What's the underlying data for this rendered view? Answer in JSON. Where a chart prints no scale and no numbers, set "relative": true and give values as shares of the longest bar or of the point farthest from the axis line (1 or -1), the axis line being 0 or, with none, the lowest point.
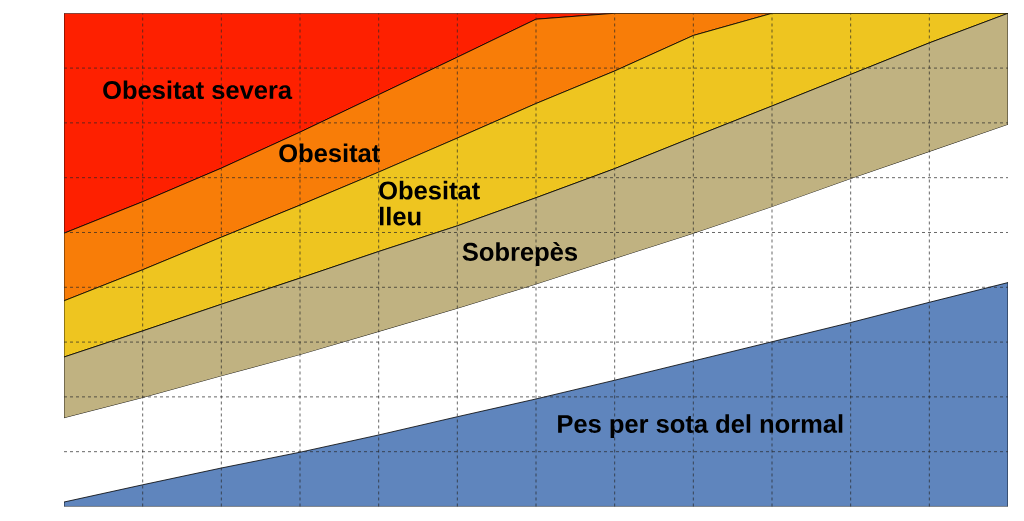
{
  "chart_data": {
    "type": "area",
    "stacked": true,
    "relative": true,
    "grid": true,
    "categories": [
      null,
      null,
      null,
      null,
      null,
      null,
      null,
      null,
      null,
      null,
      null,
      null,
      null
    ],
    "series": [
      {
        "name": "Pes per sota del normal",
        "color": "#5f85bd",
        "values": [
          0.009,
          0.044,
          0.078,
          0.11,
          0.145,
          0.182,
          0.218,
          0.256,
          0.295,
          0.334,
          0.373,
          0.414,
          0.454
        ]
      },
      {
        "color": "#ffffff",
        "values": [
          0.17,
          0.176,
          0.186,
          0.197,
          0.209,
          0.219,
          0.232,
          0.246,
          0.258,
          0.273,
          0.291,
          0.305,
          0.32
        ]
      },
      {
        "name": "Sobrepès",
        "color": "#c0b281",
        "values": [
          0.124,
          0.136,
          0.146,
          0.156,
          0.163,
          0.168,
          0.176,
          0.183,
          0.196,
          0.205,
          0.212,
          0.221,
          0.226
        ]
      },
      {
        "name": "Obesitat lleu",
        "color": "#eec520",
        "values": [
          0.114,
          0.124,
          0.136,
          0.148,
          0.161,
          0.178,
          0.191,
          0.198,
          0.206,
          0.188,
          0.124,
          0.06,
          0
        ]
      },
      {
        "name": "Obesitat",
        "color": "#f87d08",
        "values": [
          0.137,
          0.138,
          0.14,
          0.148,
          0.157,
          0.164,
          0.171,
          0.117,
          0.045,
          0,
          0,
          0,
          0
        ]
      },
      {
        "name": "Obesitat severa",
        "color": "#fe2000",
        "values": [
          0.446,
          0.382,
          0.314,
          0.241,
          0.165,
          0.089,
          0.012,
          0,
          0,
          0,
          0,
          0,
          0
        ]
      }
    ]
  }
}
